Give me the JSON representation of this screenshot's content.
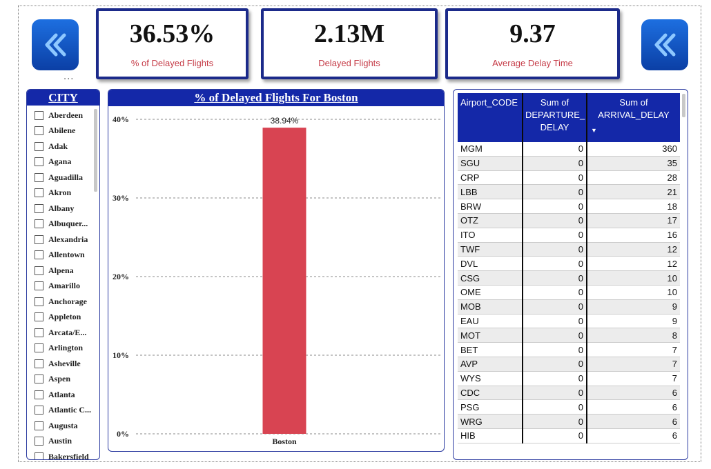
{
  "more_options": "...",
  "kpis": [
    {
      "value": "36.53%",
      "label": "% of Delayed Flights"
    },
    {
      "value": "2.13M",
      "label": "Delayed Flights"
    },
    {
      "value": "9.37",
      "label": "Average Delay Time"
    }
  ],
  "colors": {
    "header_blue": "#1428a8",
    "kpi_border": "#1b2a8a",
    "bar_red": "#d84452",
    "label_red": "#c53a46"
  },
  "icons": {
    "left_nav": "double-chevron-left-icon",
    "right_nav": "double-chevron-left-icon"
  },
  "slicer": {
    "title": "CITY",
    "items": [
      "Aberdeen",
      "Abilene",
      "Adak",
      "Agana",
      "Aguadilla",
      "Akron",
      "Albany",
      "Albuquer...",
      "Alexandria",
      "Allentown",
      "Alpena",
      "Amarillo",
      "Anchorage",
      "Appleton",
      "Arcata/E...",
      "Arlington",
      "Asheville",
      "Aspen",
      "Atlanta",
      "Atlantic C...",
      "Augusta",
      "Austin",
      "Bakersfield"
    ]
  },
  "chart": {
    "title": "% of Delayed Flights For Boston"
  },
  "chart_data": {
    "type": "bar",
    "title": "% of Delayed Flights For Boston",
    "categories": [
      "Boston"
    ],
    "values": [
      38.94
    ],
    "data_labels": [
      "38.94%"
    ],
    "ylim": [
      0,
      40
    ],
    "yticks": [
      0,
      10,
      20,
      30,
      40
    ],
    "ytick_labels": [
      "0%",
      "10%",
      "20%",
      "30%",
      "40%"
    ],
    "xlabel": "",
    "ylabel": "",
    "grid": true
  },
  "table": {
    "headers": [
      "Airport_CODE",
      "Sum of DEPARTURE_ DELAY",
      "Sum of ARRIVAL_DELAY"
    ],
    "sort_indicator": "▼",
    "rows": [
      [
        "MGM",
        "0",
        "360"
      ],
      [
        "SGU",
        "0",
        "35"
      ],
      [
        "CRP",
        "0",
        "28"
      ],
      [
        "LBB",
        "0",
        "21"
      ],
      [
        "BRW",
        "0",
        "18"
      ],
      [
        "OTZ",
        "0",
        "17"
      ],
      [
        "ITO",
        "0",
        "16"
      ],
      [
        "TWF",
        "0",
        "12"
      ],
      [
        "DVL",
        "0",
        "12"
      ],
      [
        "CSG",
        "0",
        "10"
      ],
      [
        "OME",
        "0",
        "10"
      ],
      [
        "MOB",
        "0",
        "9"
      ],
      [
        "EAU",
        "0",
        "9"
      ],
      [
        "MOT",
        "0",
        "8"
      ],
      [
        "BET",
        "0",
        "7"
      ],
      [
        "AVP",
        "0",
        "7"
      ],
      [
        "WYS",
        "0",
        "7"
      ],
      [
        "CDC",
        "0",
        "6"
      ],
      [
        "PSG",
        "0",
        "6"
      ],
      [
        "WRG",
        "0",
        "6"
      ],
      [
        "HIB",
        "0",
        "6"
      ]
    ]
  }
}
